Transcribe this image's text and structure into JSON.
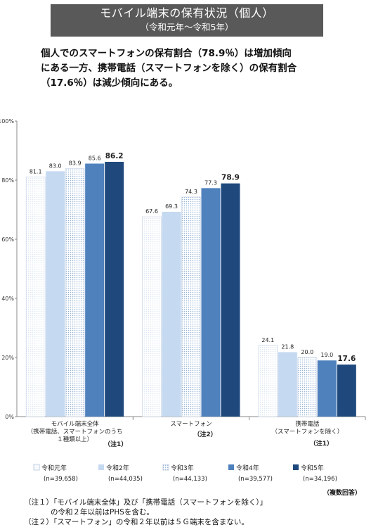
{
  "header": {
    "title": "モバイル端末の保有状況（個人）",
    "subtitle": "（令和元年〜令和5年）"
  },
  "headline": {
    "line1": "個人でのスマートフォンの保有割合（78.9％）は増加傾向",
    "line2": "にある一方、携帯電話（スマートフォンを除く）の保有割合",
    "line3": "（17.6％）は減少傾向にある。"
  },
  "chart_data": {
    "type": "bar",
    "ylim": [
      0,
      100
    ],
    "yticks": [
      {
        "value": 0,
        "label": "0%"
      },
      {
        "value": 20,
        "label": "20%"
      },
      {
        "value": 40,
        "label": "40%"
      },
      {
        "value": 60,
        "label": "60%"
      },
      {
        "value": 80,
        "label": "80%"
      },
      {
        "value": 100,
        "label": "100%"
      }
    ],
    "grid": false,
    "legend_position": "bottom",
    "categories": [
      {
        "lines": [
          "モバイル端末全体",
          "（携帯電話、スマートフォンのうち",
          "１種類以上）"
        ],
        "note": "（注1）"
      },
      {
        "lines": [
          "スマートフォン"
        ],
        "note": "（注2）"
      },
      {
        "lines": [
          "携帯電話",
          "（スマートフォンを除く）"
        ],
        "note": "（注1）"
      }
    ],
    "series": [
      {
        "name": "令和元年",
        "n": "(n=39,658)",
        "color": "#dce6f2",
        "pattern": "dots",
        "values": [
          81.1,
          67.6,
          24.1
        ]
      },
      {
        "name": "令和2年",
        "n": "(n=44,035)",
        "color": "#c5d9f1",
        "pattern": "none",
        "values": [
          83.0,
          69.3,
          21.8
        ]
      },
      {
        "name": "令和3年",
        "n": "(n=44,133)",
        "color": "#95b3d7",
        "pattern": "dots",
        "values": [
          83.9,
          74.3,
          20.0
        ]
      },
      {
        "name": "令和4年",
        "n": "(n=39,577)",
        "color": "#4f81bd",
        "pattern": "none",
        "values": [
          85.6,
          77.3,
          19.0
        ]
      },
      {
        "name": "令和5年",
        "n": "(n=34,196)",
        "color": "#1f497d",
        "pattern": "none",
        "values": [
          86.2,
          78.9,
          17.6
        ]
      }
    ]
  },
  "multiple_answer": "（複数回答）",
  "notes": {
    "note1_line1": "（注１）「モバイル端末全体」及び「携帯電話（スマートフォンを除く）」",
    "note1_line2": "の令和２年以前はPHSを含む。",
    "note2": "（注２）「スマートフォン」の令和２年以前は５Ｇ端末を含まない。"
  }
}
